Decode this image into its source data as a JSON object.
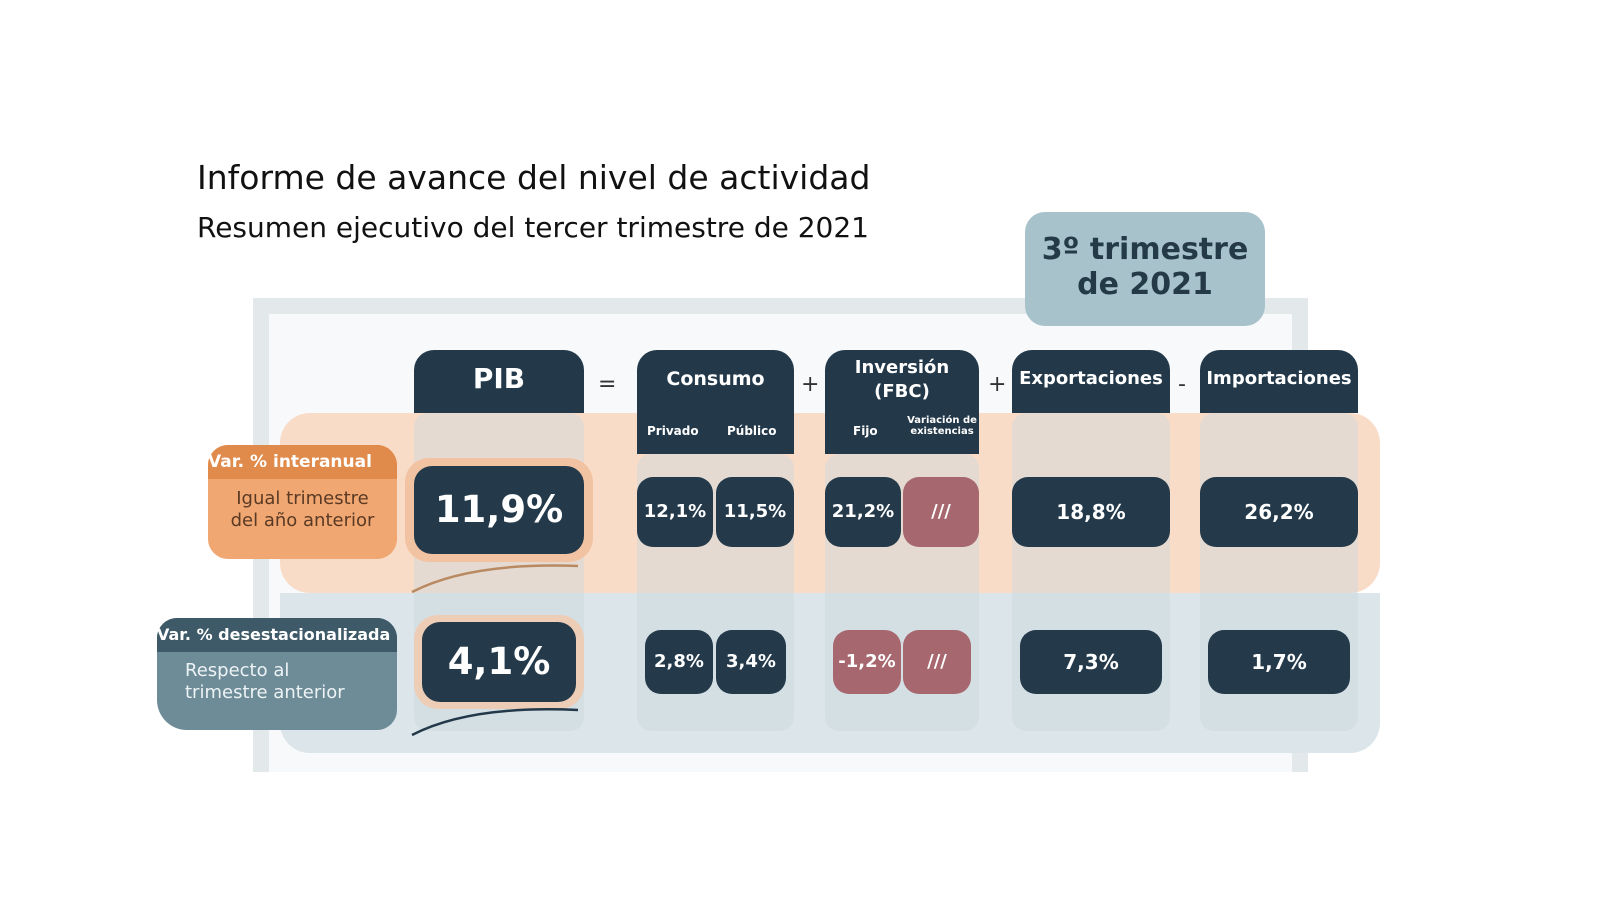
{
  "header": {
    "title": "Informe de avance del nivel de actividad",
    "subtitle": "Resumen ejecutivo del tercer trimestre de 2021"
  },
  "period": {
    "line1": "3º trimestre",
    "line2": "de 2021"
  },
  "equation": {
    "pib": "PIB",
    "ops": {
      "eq": "=",
      "plus1": "+",
      "plus2": "+",
      "minus": "-"
    },
    "consumo": {
      "label": "Consumo",
      "sub1": "Privado",
      "sub2": "Público"
    },
    "inversion": {
      "label1": "Inversión",
      "label2": "(FBC)",
      "sub1": "Fijo",
      "sub2a": "Variación de",
      "sub2b": "existencias"
    },
    "exportaciones": {
      "label": "Exportaciones"
    },
    "importaciones": {
      "label": "Importaciones"
    }
  },
  "rows": {
    "interanual": {
      "tag": "Var. % interanual",
      "desc1": "Igual trimestre",
      "desc2": "del año anterior",
      "pib": "11,9%",
      "consumo_privado": "12,1%",
      "consumo_publico": "11,5%",
      "inversion_fijo": "21,2%",
      "inversion_variacion": "///",
      "exportaciones": "18,8%",
      "importaciones": "26,2%"
    },
    "desestacionalizada": {
      "tag": "Var. % desestacionalizada",
      "desc1": "Respecto al",
      "desc2": "trimestre anterior",
      "pib": "4,1%",
      "consumo_privado": "2,8%",
      "consumo_publico": "3,4%",
      "inversion_fijo": "-1,2%",
      "inversion_variacion": "///",
      "exportaciones": "7,3%",
      "importaciones": "1,7%"
    }
  },
  "colors": {
    "navy": "#243a4a",
    "orange_band": "#f9dcc8",
    "orange_tag": "#e08a4b",
    "blue_band": "#dbe5ea",
    "rose": "#a6686e",
    "period_box": "#a8c2cb"
  }
}
